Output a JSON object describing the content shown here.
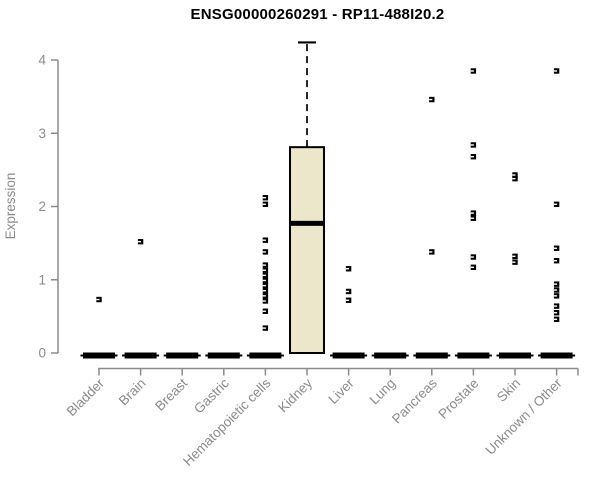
{
  "chart_data": {
    "type": "boxplot",
    "title": "ENSG00000260291 - RP11-488I20.2",
    "ylabel": "Expression",
    "ylim": [
      0,
      4
    ],
    "yticks": [
      0,
      1,
      2,
      3,
      4
    ],
    "categories": [
      "Bladder",
      "Brain",
      "Breast",
      "Gastric",
      "Hematopoietic cells",
      "Kidney",
      "Liver",
      "Lung",
      "Pancreas",
      "Prostate",
      "Skin",
      "Unknown / Other"
    ],
    "groups": [
      {
        "name": "Bladder",
        "q1": 0,
        "median": 0,
        "q3": 0,
        "whisker_low": 0,
        "whisker_high": 0,
        "outliers": [
          0.73
        ]
      },
      {
        "name": "Brain",
        "q1": 0,
        "median": 0,
        "q3": 0,
        "whisker_low": 0,
        "whisker_high": 0,
        "outliers": [
          1.52
        ]
      },
      {
        "name": "Breast",
        "q1": 0,
        "median": 0,
        "q3": 0,
        "whisker_low": 0,
        "whisker_high": 0,
        "outliers": []
      },
      {
        "name": "Gastric",
        "q1": 0,
        "median": 0,
        "q3": 0,
        "whisker_low": 0,
        "whisker_high": 0,
        "outliers": []
      },
      {
        "name": "Hematopoietic cells",
        "q1": 0,
        "median": 0,
        "q3": 0,
        "whisker_low": 0,
        "whisker_high": 0,
        "outliers": [
          2.12,
          2.03,
          1.54,
          1.38,
          1.2,
          1.13,
          1.06,
          0.99,
          0.92,
          0.85,
          0.78,
          0.71,
          0.57,
          0.34
        ]
      },
      {
        "name": "Kidney",
        "q1": 0,
        "median": 1.77,
        "q3": 2.81,
        "whisker_low": 0,
        "whisker_high": 4.24,
        "outliers": []
      },
      {
        "name": "Liver",
        "q1": 0,
        "median": 0,
        "q3": 0,
        "whisker_low": 0,
        "whisker_high": 0,
        "outliers": [
          1.15,
          0.84,
          0.72
        ]
      },
      {
        "name": "Lung",
        "q1": 0,
        "median": 0,
        "q3": 0,
        "whisker_low": 0,
        "whisker_high": 0,
        "outliers": []
      },
      {
        "name": "Pancreas",
        "q1": 0,
        "median": 0,
        "q3": 0,
        "whisker_low": 0,
        "whisker_high": 0,
        "outliers": [
          3.46,
          1.38
        ]
      },
      {
        "name": "Prostate",
        "q1": 0,
        "median": 0,
        "q3": 0,
        "whisker_low": 0,
        "whisker_high": 0,
        "outliers": [
          3.85,
          2.84,
          2.68,
          1.91,
          1.84,
          1.31,
          1.17
        ]
      },
      {
        "name": "Skin",
        "q1": 0,
        "median": 0,
        "q3": 0,
        "whisker_low": 0,
        "whisker_high": 0,
        "outliers": [
          2.43,
          2.38,
          1.32,
          1.24
        ]
      },
      {
        "name": "Unknown / Other",
        "q1": 0,
        "median": 0,
        "q3": 0,
        "whisker_low": 0,
        "whisker_high": 0,
        "outliers": [
          3.85,
          2.03,
          1.43,
          1.26,
          0.94,
          0.86,
          0.78,
          0.64,
          0.55,
          0.46
        ]
      }
    ],
    "colors": {
      "box_fill": "#ece6ca",
      "box_border": "#000000",
      "median": "#000000",
      "outlier": "#000000",
      "axis": "#8b8b8b",
      "tick_label": "#8b8b8b",
      "title": "#000000"
    },
    "legend": "none",
    "grid": false
  }
}
